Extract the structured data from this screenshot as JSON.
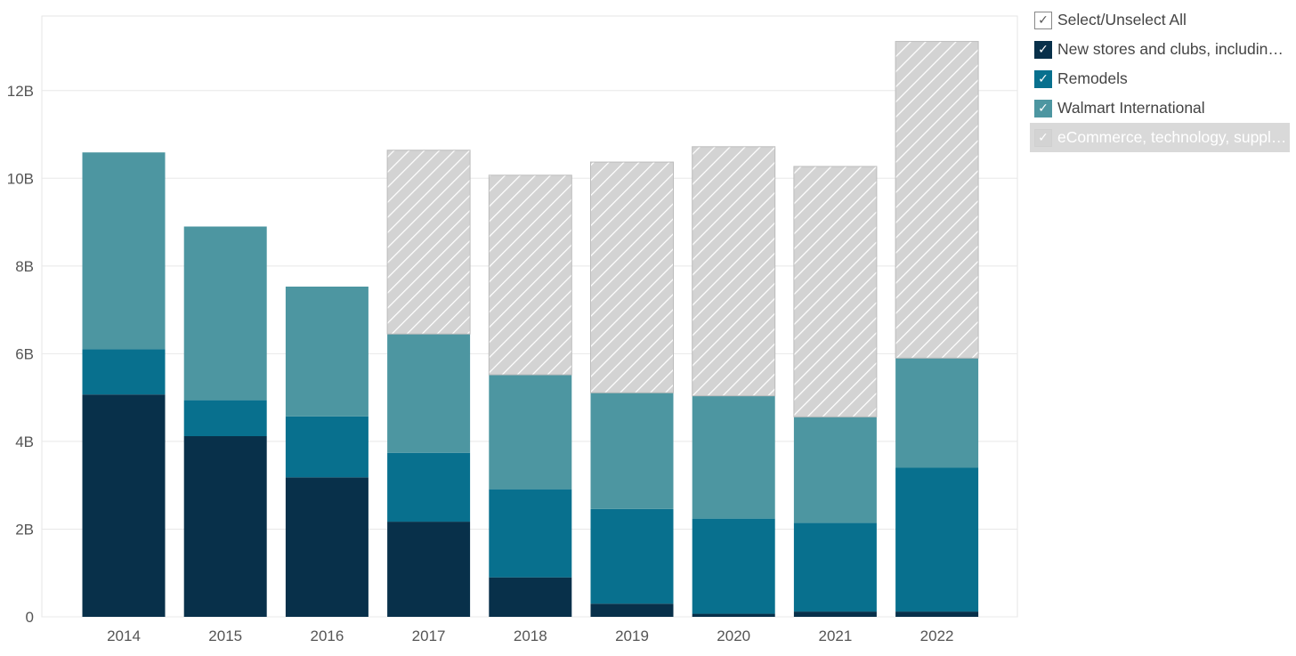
{
  "chart_data": {
    "type": "bar",
    "stacked": true,
    "categories": [
      "2014",
      "2015",
      "2016",
      "2017",
      "2018",
      "2019",
      "2020",
      "2021",
      "2022"
    ],
    "series": [
      {
        "name": "New stores and clubs, includin…",
        "color": "#08304a",
        "values": [
          5.07,
          4.12,
          3.18,
          2.17,
          0.9,
          0.3,
          0.07,
          0.12,
          0.12
        ]
      },
      {
        "name": "Remodels",
        "color": "#08708e",
        "values": [
          1.03,
          0.82,
          1.39,
          1.57,
          2.01,
          2.16,
          2.17,
          2.02,
          3.28
        ]
      },
      {
        "name": "Walmart International",
        "color": "#4d96a1",
        "values": [
          4.49,
          3.96,
          2.96,
          2.71,
          2.61,
          2.65,
          2.8,
          2.42,
          2.5
        ]
      },
      {
        "name": "eCommerce, technology, suppl…",
        "color": "#d3d3d3",
        "hatched": true,
        "values": [
          0,
          0,
          0,
          4.19,
          4.55,
          5.26,
          5.68,
          5.71,
          7.22
        ]
      }
    ],
    "yticks": [
      "0",
      "2B",
      "4B",
      "6B",
      "8B",
      "10B",
      "12B"
    ],
    "ylim": [
      0,
      13.7
    ],
    "unit": "billions",
    "grid": true,
    "legend": "right"
  },
  "legend": {
    "select_all": "Select/Unselect All",
    "items": [
      {
        "label": "New stores and clubs, includin…",
        "color": "#08304a",
        "checked": true,
        "dimmed": false
      },
      {
        "label": "Remodels",
        "color": "#08708e",
        "checked": true,
        "dimmed": false
      },
      {
        "label": "Walmart International",
        "color": "#4d96a1",
        "checked": true,
        "dimmed": false
      },
      {
        "label": "eCommerce, technology, suppl…",
        "color": "#d3d3d3",
        "checked": true,
        "dimmed": true
      }
    ]
  }
}
